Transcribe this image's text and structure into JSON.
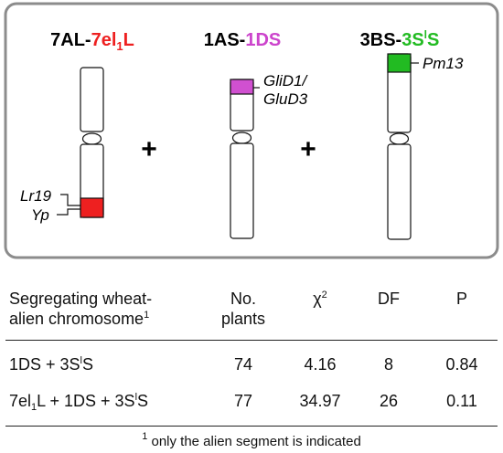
{
  "diagram": {
    "chromosomes": [
      {
        "title_parts": {
          "a": "7AL-",
          "b": "7el",
          "sub": "1",
          "c": "L"
        },
        "title_color": "#ee2020",
        "segment_color": "#ee2020",
        "genes": [
          "Lr19",
          "Yp"
        ]
      },
      {
        "title_parts": {
          "a": "1AS-",
          "b": "1DS"
        },
        "title_color": "#cc44cc",
        "segment_color": "#d050d0",
        "genes": [
          "GliD1/",
          "GluD3"
        ]
      },
      {
        "title_parts": {
          "a": "3BS-",
          "b": "3S",
          "sup": "l",
          "c": "S"
        },
        "title_color": "#22bb22",
        "segment_color": "#22bb22",
        "genes": [
          "Pm13"
        ]
      }
    ],
    "plus_sign": "+"
  },
  "table": {
    "headers": {
      "col1_line1": "Segregating wheat-",
      "col1_line2": "alien chromosome",
      "col1_sup": "1",
      "col2_line1": "No.",
      "col2_line2": "plants",
      "col3_main": "χ",
      "col3_sup": "2",
      "col4": "DF",
      "col5": "P"
    },
    "rows": [
      {
        "label": {
          "a": "1DS + 3S",
          "sup": "l",
          "b": "S"
        },
        "plants": "74",
        "chi2": "4.16",
        "df": "8",
        "p": "0.84"
      },
      {
        "label": {
          "a": "7el",
          "sub": "1",
          "b": "L + 1DS + 3S",
          "sup": "l",
          "c": "S"
        },
        "plants": "77",
        "chi2": "34.97",
        "df": "26",
        "p": "0.11"
      }
    ],
    "footnote": {
      "sup": "1",
      "text": " only the alien segment is indicated"
    }
  }
}
